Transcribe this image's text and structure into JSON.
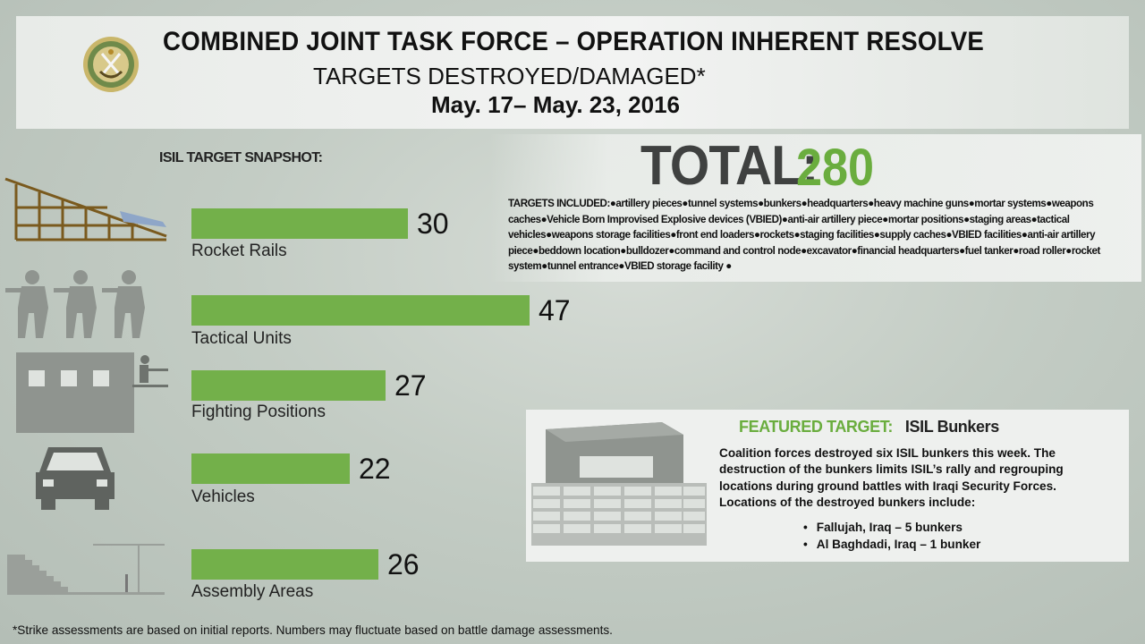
{
  "header": {
    "title": "COMBINED JOINT TASK FORCE – OPERATION INHERENT RESOLVE",
    "subtitle": "TARGETS DESTROYED/DAMAGED*",
    "dates": "May. 17– May. 23,  2016"
  },
  "snapshot_label": "ISIL TARGET SNAPSHOT:",
  "chart_data": {
    "type": "bar",
    "orientation": "horizontal",
    "categories": [
      "Rocket Rails",
      "Tactical Units",
      "Fighting Positions",
      "Vehicles",
      "Assembly Areas"
    ],
    "values": [
      30,
      47,
      27,
      22,
      26
    ],
    "data_labels": [
      "30",
      "47",
      "27",
      "22",
      "26"
    ],
    "bar_color": "#73b04a",
    "icons": [
      "rocket-rail-icon",
      "tactical-units-icon",
      "fighting-position-icon",
      "vehicle-icon",
      "assembly-area-icon"
    ]
  },
  "total": {
    "label": "TOTAL:",
    "value": "280"
  },
  "targets_included": {
    "lead": "TARGETS INCLUDED:",
    "text": "●artillery pieces●tunnel systems●bunkers●headquarters●heavy machine guns●mortar systems●weapons caches●Vehicle Born Improvised Explosive devices (VBIED)●anti-air artillery piece●mortar positions●staging areas●tactical vehicles●weapons storage facilities●front end loaders●rockets●staging facilities●supply caches●VBIED facilities●anti-air artillery piece●beddown location●bulldozer●command and control node●excavator●financial headquarters●fuel tanker●road roller●rocket system●tunnel entrance●VBIED storage facility ●"
  },
  "featured": {
    "heading": "FEATURED TARGET:",
    "name": "ISIL Bunkers",
    "body": "Coalition forces destroyed six ISIL bunkers this week. The destruction of the bunkers limits ISIL’s rally and regrouping locations during ground battles with Iraqi Security Forces. Locations of the destroyed bunkers include:",
    "locations": [
      "Fallujah, Iraq – 5 bunkers",
      "Al Baghdadi, Iraq – 1 bunker"
    ]
  },
  "footnote": "*Strike assessments are based on initial reports. Numbers may fluctuate based on battle damage assessments.",
  "colors": {
    "accent_green": "#6aad3e",
    "bar_green": "#73b04a",
    "title_dark": "#3f4140"
  }
}
